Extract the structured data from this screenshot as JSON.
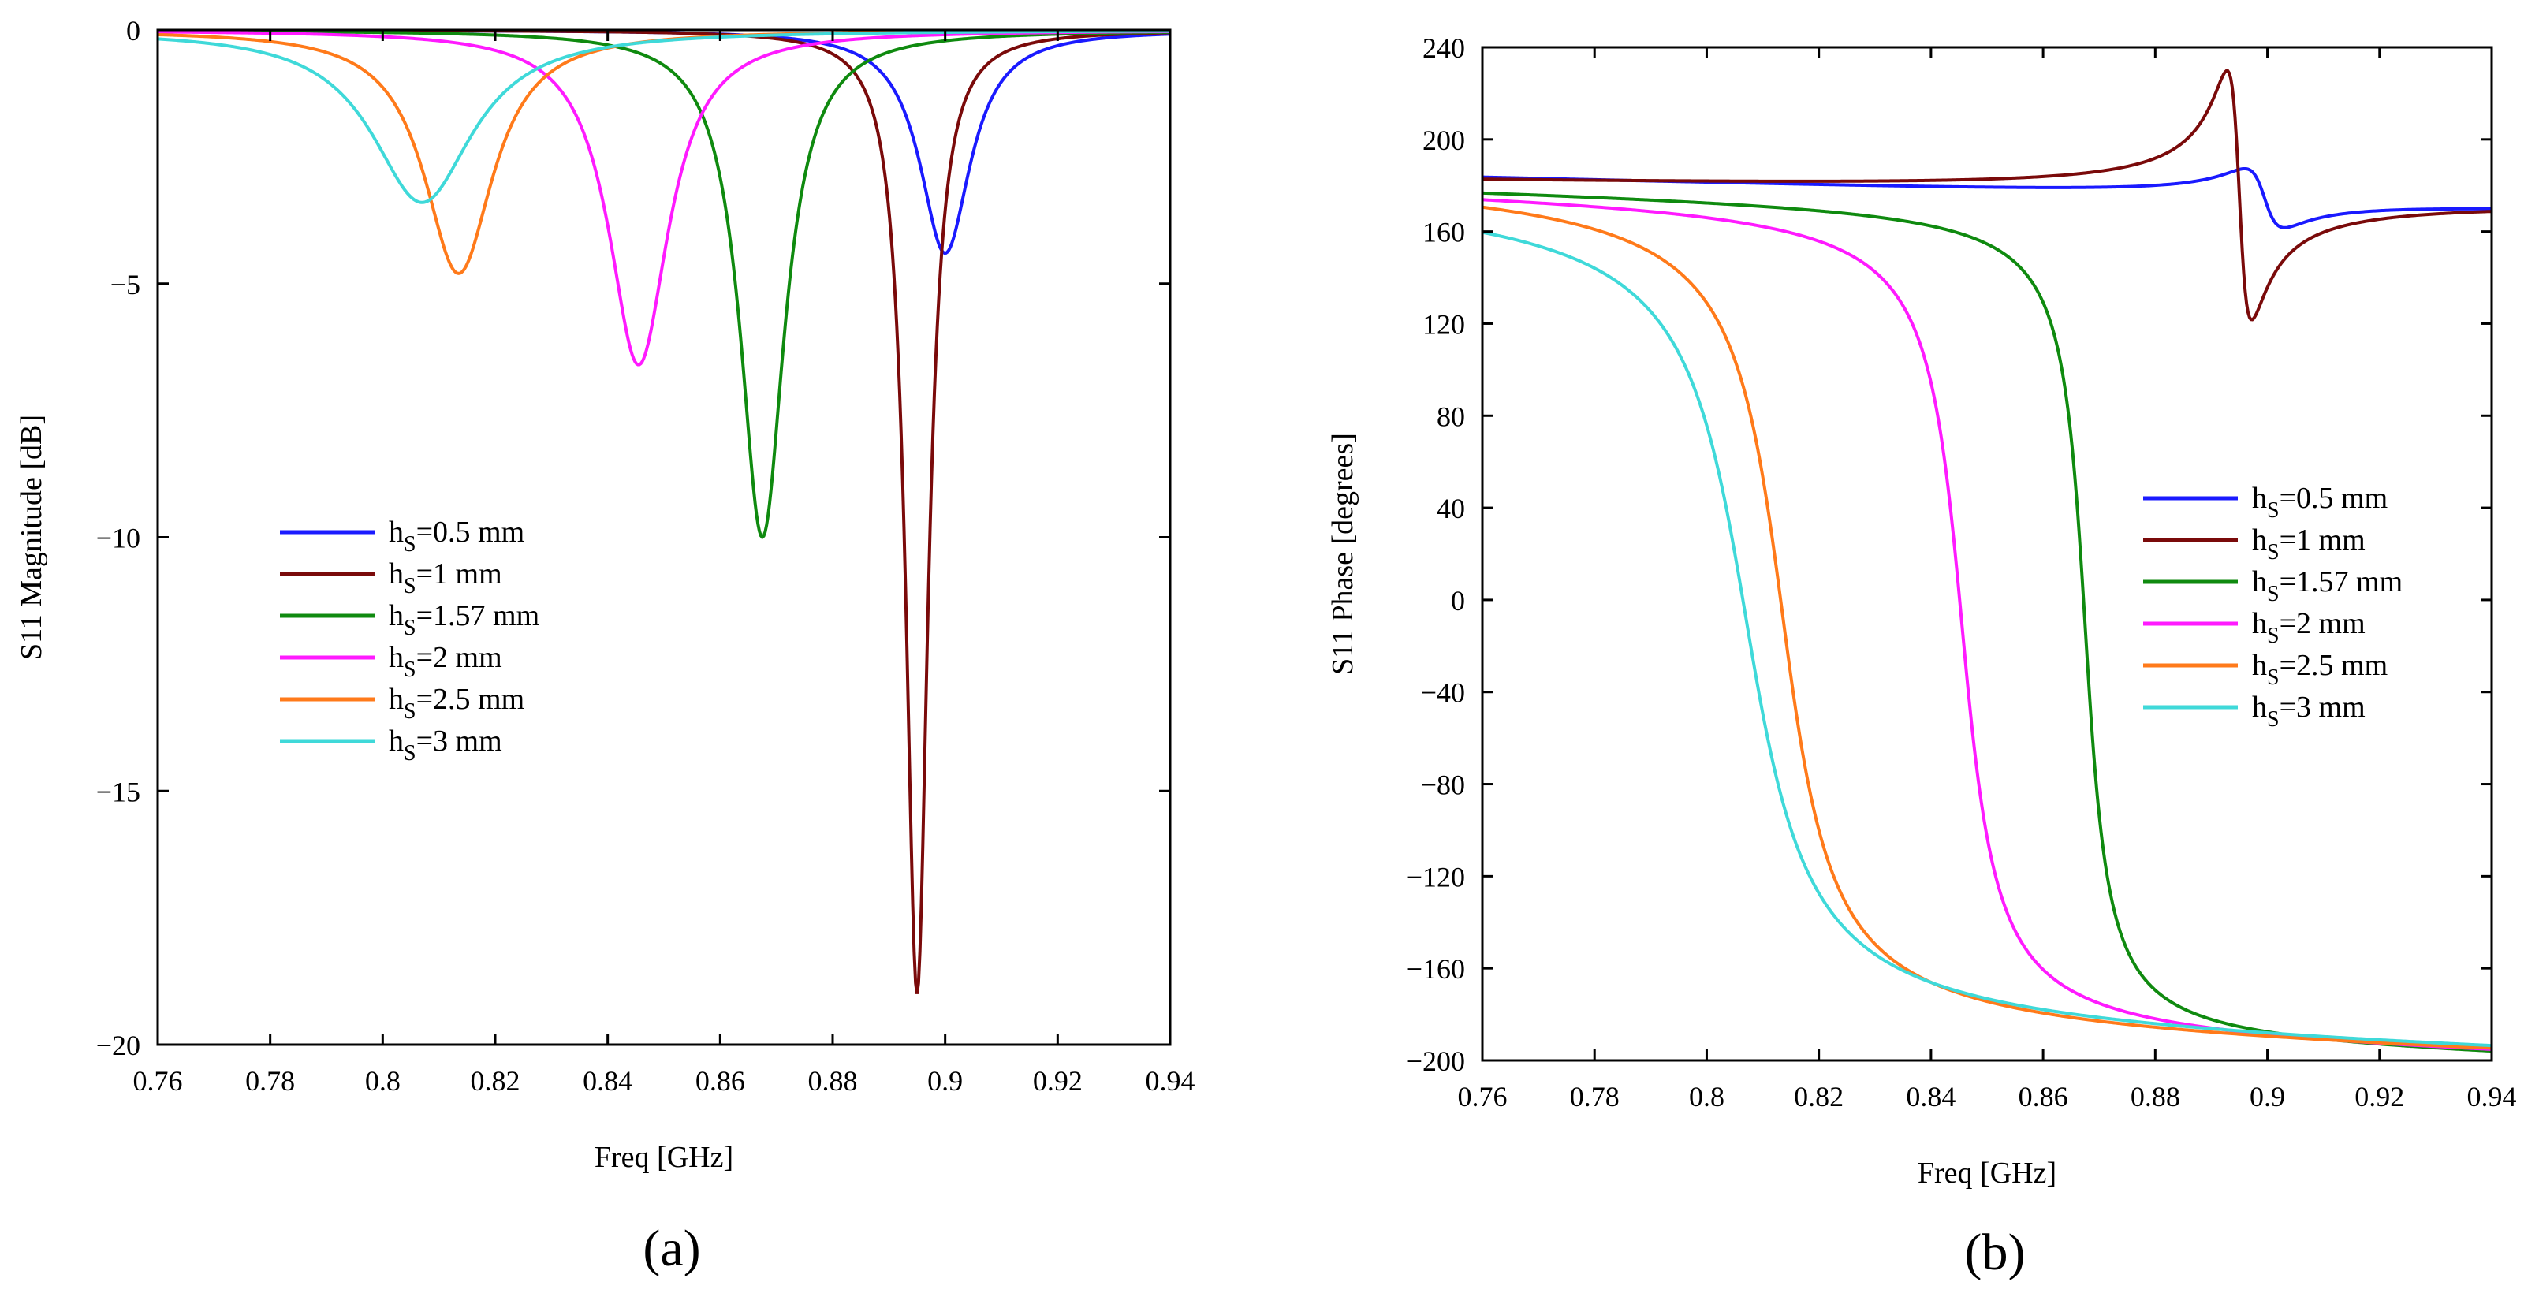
{
  "chart_data": [
    {
      "type": "line",
      "panel": "(a)",
      "xlabel": "Freq [GHz]",
      "ylabel": "S11 Magnitude [dB]",
      "xlim": [
        0.76,
        0.94
      ],
      "ylim": [
        -20,
        0
      ],
      "xticks": [
        0.76,
        0.78,
        0.8,
        0.82,
        0.84,
        0.86,
        0.88,
        0.9,
        0.92,
        0.94
      ],
      "xtick_labels": [
        "0.76",
        "0.78",
        "0.8",
        "0.82",
        "0.84",
        "0.86",
        "0.88",
        "0.9",
        "0.92",
        "0.94"
      ],
      "yticks": [
        0,
        -5,
        -10,
        -15,
        -20
      ],
      "ytick_labels": [
        "0",
        "−5",
        "−10",
        "−15",
        "−20"
      ],
      "legend_location": "center-left",
      "series": [
        {
          "name": "0.5 mm",
          "sub": "S",
          "prefix": "h",
          "suffix": "=0.5 mm",
          "color": "#1a1aff",
          "kind": "dip",
          "f0": 0.9,
          "min": -4.4,
          "width": 0.0055
        },
        {
          "name": "1 mm",
          "sub": "S",
          "prefix": "h",
          "suffix": "=1 mm",
          "color": "#7a0a0a",
          "kind": "dip",
          "f0": 0.895,
          "min": -19.0,
          "width": 0.0024
        },
        {
          "name": "1.57 mm",
          "sub": "S",
          "prefix": "h",
          "suffix": "=1.57 mm",
          "color": "#0f8a0f",
          "kind": "dip",
          "f0": 0.8675,
          "min": -10.0,
          "width": 0.0048
        },
        {
          "name": "2 mm",
          "sub": "S",
          "prefix": "h",
          "suffix": "=2 mm",
          "color": "#ff1aff",
          "kind": "dip",
          "f0": 0.8455,
          "min": -6.6,
          "width": 0.0065
        },
        {
          "name": "2.5 mm",
          "sub": "S",
          "prefix": "h",
          "suffix": "=2.5 mm",
          "color": "#ff7a1a",
          "kind": "dip",
          "f0": 0.8135,
          "min": -4.8,
          "width": 0.0075
        },
        {
          "name": "3 mm",
          "sub": "S",
          "prefix": "h",
          "suffix": "=3 mm",
          "color": "#3fd9d9",
          "kind": "dip",
          "f0": 0.807,
          "min": -3.4,
          "width": 0.011
        }
      ],
      "caption": "(a)"
    },
    {
      "type": "line",
      "panel": "(b)",
      "xlabel": "Freq [GHz]",
      "ylabel": "S11 Phase [degrees]",
      "xlim": [
        0.76,
        0.94
      ],
      "ylim": [
        -200,
        240
      ],
      "xticks": [
        0.76,
        0.78,
        0.8,
        0.82,
        0.84,
        0.86,
        0.88,
        0.9,
        0.92,
        0.94
      ],
      "xtick_labels": [
        "0.76",
        "0.78",
        "0.8",
        "0.82",
        "0.84",
        "0.86",
        "0.88",
        "0.9",
        "0.92",
        "0.94"
      ],
      "yticks": [
        240,
        200,
        160,
        120,
        80,
        40,
        0,
        -40,
        -80,
        -120,
        -160,
        -200
      ],
      "ytick_labels": [
        "240",
        "200",
        "160",
        "120",
        "80",
        "40",
        "0",
        "−40",
        "−80",
        "−120",
        "−160",
        "−200"
      ],
      "legend_location": "center-right",
      "series": [
        {
          "name": "0.5 mm",
          "sub": "S",
          "prefix": "h",
          "suffix": "=0.5 mm",
          "color": "#1a1aff",
          "kind": "wiggle",
          "f0": 0.8995,
          "start": 183,
          "end": 172,
          "amp": 14,
          "width": 0.0035
        },
        {
          "name": "1 mm",
          "sub": "S",
          "prefix": "h",
          "suffix": "=1 mm",
          "color": "#7a0a0a",
          "kind": "wiggle",
          "f0": 0.895,
          "start": 181,
          "end": 174,
          "amp": 60,
          "width": 0.0022
        },
        {
          "name": "1.57 mm",
          "sub": "S",
          "prefix": "h",
          "suffix": "=1.57 mm",
          "color": "#0f8a0f",
          "kind": "step",
          "f0": 0.8675,
          "start": 180,
          "end": -190,
          "width": 0.003
        },
        {
          "name": "2 mm",
          "sub": "S",
          "prefix": "h",
          "suffix": "=2 mm",
          "color": "#ff1aff",
          "kind": "step",
          "f0": 0.8455,
          "start": 180,
          "end": -190,
          "width": 0.0045
        },
        {
          "name": "2.5 mm",
          "sub": "S",
          "prefix": "h",
          "suffix": "=2.5 mm",
          "color": "#ff7a1a",
          "kind": "step",
          "f0": 0.8135,
          "start": 185,
          "end": -190,
          "width": 0.0065
        },
        {
          "name": "3 mm",
          "sub": "S",
          "prefix": "h",
          "suffix": "=3 mm",
          "color": "#3fd9d9",
          "kind": "step",
          "f0": 0.807,
          "start": 180,
          "end": -190,
          "width": 0.0082
        }
      ],
      "caption": "(b)"
    }
  ]
}
